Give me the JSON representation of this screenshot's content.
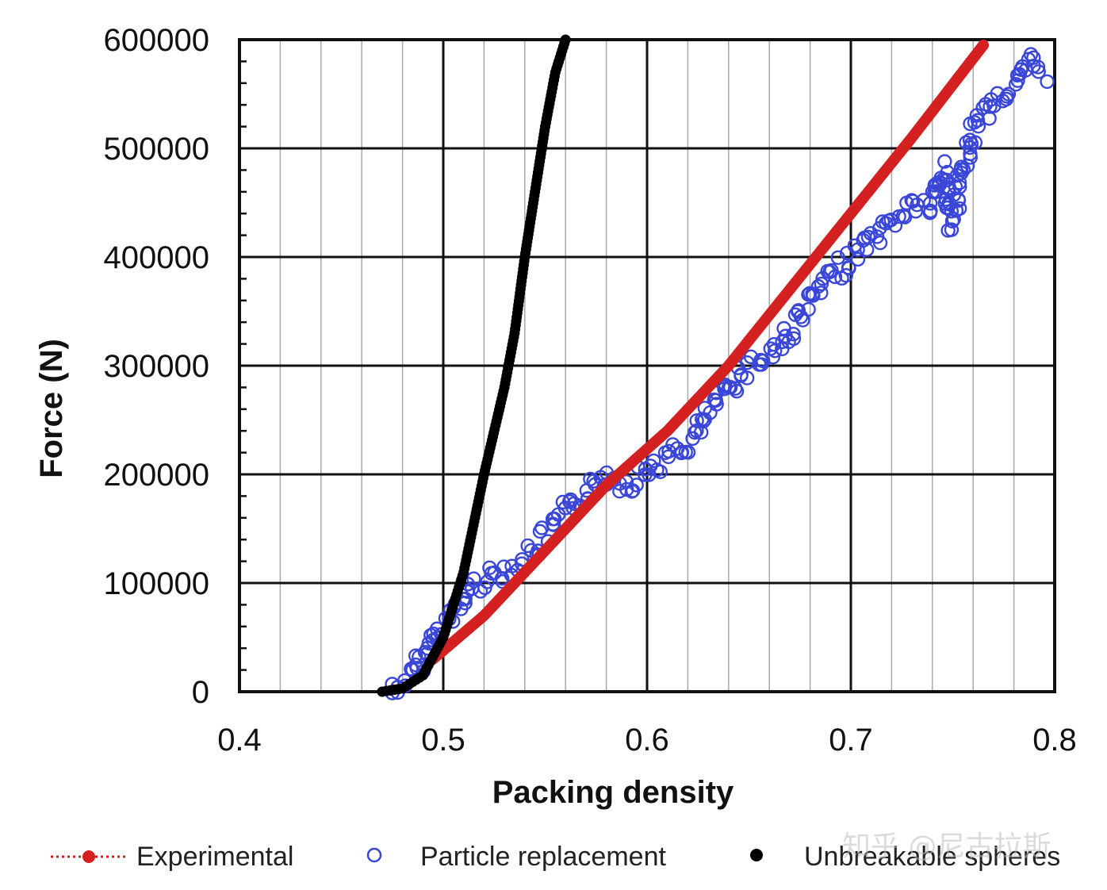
{
  "chart_data": {
    "type": "scatter",
    "title": "",
    "xlabel": "Packing density",
    "ylabel": "Force (N)",
    "xlim": [
      0.4,
      0.8
    ],
    "ylim": [
      0,
      600000
    ],
    "xticks": [
      "0.4",
      "0.5",
      "0.6",
      "0.7",
      "0.8"
    ],
    "yticks": [
      "0",
      "100000",
      "200000",
      "300000",
      "400000",
      "500000",
      "600000"
    ],
    "grid": true,
    "legend_position": "bottom",
    "series": [
      {
        "name": "Experimental",
        "marker": "filled-circle-dotted-line",
        "color": "#d42020",
        "points": [
          [
            0.495,
            30000
          ],
          [
            0.52,
            70000
          ],
          [
            0.55,
            130000
          ],
          [
            0.58,
            190000
          ],
          [
            0.61,
            240000
          ],
          [
            0.64,
            300000
          ],
          [
            0.67,
            370000
          ],
          [
            0.7,
            440000
          ],
          [
            0.73,
            510000
          ],
          [
            0.765,
            595000
          ]
        ]
      },
      {
        "name": "Particle replacement",
        "marker": "open-circle",
        "color": "#3a46d8",
        "points": [
          [
            0.475,
            0
          ],
          [
            0.485,
            15000
          ],
          [
            0.495,
            50000
          ],
          [
            0.505,
            70000
          ],
          [
            0.515,
            100000
          ],
          [
            0.53,
            110000
          ],
          [
            0.545,
            130000
          ],
          [
            0.56,
            165000
          ],
          [
            0.57,
            180000
          ],
          [
            0.58,
            200000
          ],
          [
            0.59,
            190000
          ],
          [
            0.6,
            205000
          ],
          [
            0.61,
            215000
          ],
          [
            0.62,
            225000
          ],
          [
            0.63,
            255000
          ],
          [
            0.64,
            280000
          ],
          [
            0.65,
            300000
          ],
          [
            0.66,
            310000
          ],
          [
            0.67,
            330000
          ],
          [
            0.68,
            360000
          ],
          [
            0.69,
            380000
          ],
          [
            0.7,
            400000
          ],
          [
            0.71,
            415000
          ],
          [
            0.72,
            430000
          ],
          [
            0.73,
            450000
          ],
          [
            0.74,
            445000
          ],
          [
            0.745,
            480000
          ],
          [
            0.75,
            430000
          ],
          [
            0.76,
            520000
          ],
          [
            0.77,
            545000
          ],
          [
            0.78,
            555000
          ],
          [
            0.79,
            580000
          ],
          [
            0.795,
            570000
          ]
        ]
      },
      {
        "name": "Unbreakable spheres",
        "marker": "filled-circle",
        "color": "#000000",
        "points": [
          [
            0.47,
            0
          ],
          [
            0.48,
            3000
          ],
          [
            0.49,
            15000
          ],
          [
            0.5,
            50000
          ],
          [
            0.51,
            110000
          ],
          [
            0.52,
            200000
          ],
          [
            0.53,
            280000
          ],
          [
            0.535,
            330000
          ],
          [
            0.54,
            400000
          ],
          [
            0.545,
            460000
          ],
          [
            0.55,
            520000
          ],
          [
            0.555,
            570000
          ],
          [
            0.56,
            600000
          ]
        ]
      }
    ]
  },
  "watermark": "知乎 @尼古拉斯"
}
